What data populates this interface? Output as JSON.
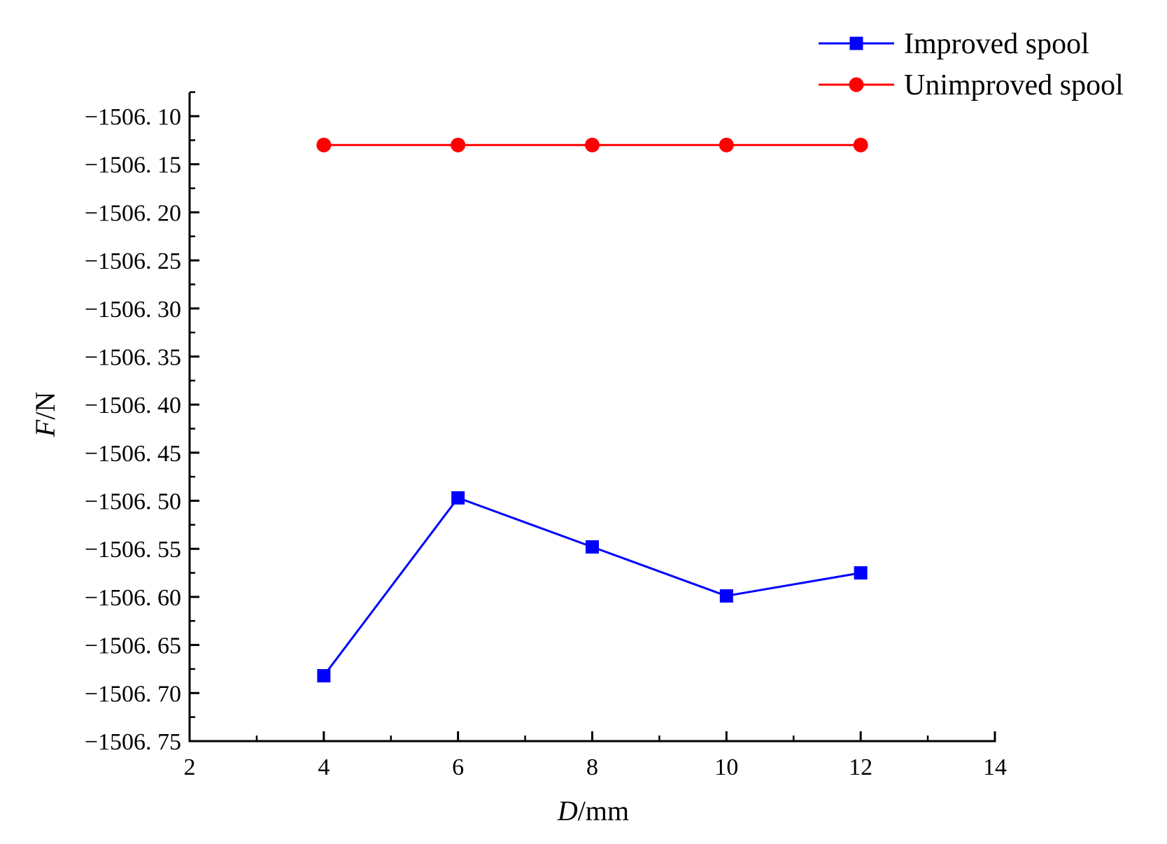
{
  "chart_data": {
    "type": "line",
    "title": "",
    "xlabel_var": "D",
    "xlabel_unit": "/mm",
    "ylabel_var": "F",
    "ylabel_unit": "/N",
    "xlim": [
      2,
      14
    ],
    "ylim": [
      -1506.75,
      -1506.07
    ],
    "x_ticks": [
      2,
      4,
      6,
      8,
      10,
      12,
      14
    ],
    "x_tick_labels": [
      "2",
      "4",
      "6",
      "8",
      "10",
      "12",
      "14"
    ],
    "y_ticks": [
      -1506.1,
      -1506.15,
      -1506.2,
      -1506.25,
      -1506.3,
      -1506.35,
      -1506.4,
      -1506.45,
      -1506.5,
      -1506.55,
      -1506.6,
      -1506.65,
      -1506.7,
      -1506.75
    ],
    "y_tick_labels": [
      "−1506. 10",
      "−1506. 15",
      "−1506. 20",
      "−1506. 25",
      "−1506. 30",
      "−1506. 35",
      "−1506. 40",
      "−1506. 45",
      "−1506. 50",
      "−1506. 55",
      "−1506. 60",
      "−1506. 65",
      "−1506. 70",
      "−1506. 75"
    ],
    "x": [
      4,
      6,
      8,
      10,
      12
    ],
    "series": [
      {
        "name": "Improved spool",
        "key": "improved",
        "color": "#0000ff",
        "marker": "square",
        "values": [
          -1506.682,
          -1506.497,
          -1506.548,
          -1506.599,
          -1506.575
        ]
      },
      {
        "name": "Unimproved spool",
        "key": "unimproved",
        "color": "#ff0000",
        "marker": "circle",
        "values": [
          -1506.13,
          -1506.13,
          -1506.13,
          -1506.13,
          -1506.13
        ]
      }
    ],
    "legend_position": "top-right",
    "grid": false
  }
}
